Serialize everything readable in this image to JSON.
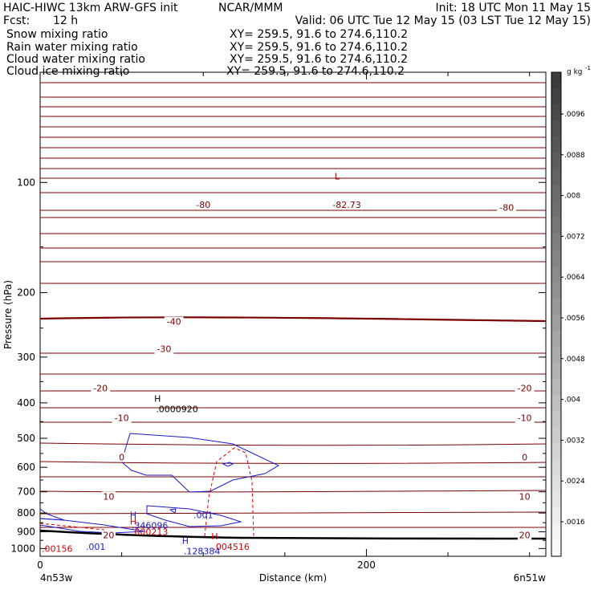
{
  "header": {
    "title": "HAIC-HIWC 13km ARW-GFS init",
    "org": "NCAR/MMM",
    "init": "Init: 18 UTC Mon 11 May 15",
    "fcst_label": "Fcst:",
    "fcst_value": "12 h",
    "valid": "Valid: 06 UTC Tue 12 May 15 (03 LST Tue 12 May 15)"
  },
  "fields": [
    {
      "name": "Snow mixing ratio",
      "xy": "XY= 259.5, 91.6 to 274.6,110.2",
      "color": "#000000"
    },
    {
      "name": "Rain water mixing ratio",
      "xy": "XY= 259.5, 91.6 to 274.6,110.2",
      "color": "#e00000"
    },
    {
      "name": "Cloud water mixing ratio",
      "xy": "XY= 259.5, 91.6 to 274.6,110.2",
      "color": "#1a1ad0"
    },
    {
      "name": "Cloud ice mixing ratio",
      "xy": "XY= 259.5, 91.6 to 274.6,110.2",
      "color": "#000000"
    }
  ],
  "chart_data": {
    "type": "contour-cross-section",
    "xlabel": "Distance (km)",
    "ylabel": "Pressure (hPa)",
    "x_ticks": [
      0,
      200
    ],
    "x_range": [
      0,
      310
    ],
    "y_ticks": [
      100,
      200,
      300,
      400,
      500,
      600,
      700,
      800,
      900,
      1000
    ],
    "y_range": [
      50,
      1050
    ],
    "y_scale": "log",
    "left_endpoint": "4n53w",
    "right_endpoint": "6n51w",
    "temperature_contour_labels": [
      {
        "text": "-80",
        "x": 100,
        "p": 115
      },
      {
        "text": "-82.73",
        "x": 188,
        "p": 115
      },
      {
        "text": "-80",
        "x": 286,
        "p": 117
      },
      {
        "text": "-40",
        "x": 82,
        "p": 240
      },
      {
        "text": "-30",
        "x": 76,
        "p": 285
      },
      {
        "text": "-20",
        "x": 37,
        "p": 365
      },
      {
        "text": "-20",
        "x": 297,
        "p": 365
      },
      {
        "text": "-10",
        "x": 50,
        "p": 440
      },
      {
        "text": "-10",
        "x": 297,
        "p": 440
      },
      {
        "text": "0",
        "x": 50,
        "p": 563
      },
      {
        "text": "0",
        "x": 297,
        "p": 563
      },
      {
        "text": "10",
        "x": 42,
        "p": 720
      },
      {
        "text": "10",
        "x": 297,
        "p": 720
      },
      {
        "text": "20",
        "x": 42,
        "p": 918
      },
      {
        "text": "20",
        "x": 297,
        "p": 918
      }
    ],
    "extrema": [
      {
        "marker": "L",
        "x": 182,
        "p": 98,
        "value": "",
        "color": "#aa0000"
      },
      {
        "marker": "H",
        "x": 72,
        "p": 397,
        "value": ".0000920",
        "color": "#000000"
      },
      {
        "marker": "H",
        "x": 57,
        "p": 826,
        "value": ".346096",
        "color": "#1a1ad0"
      },
      {
        "marker": "H",
        "x": 57,
        "p": 860,
        "value": ".000213",
        "color": "#e00000"
      },
      {
        "marker": "H",
        "x": 107,
        "p": 945,
        "value": ".004516",
        "color": "#e00000"
      },
      {
        "marker": "H",
        "x": 89,
        "p": 970,
        "value": ".128384",
        "color": "#1a1ad0"
      }
    ],
    "contour_value_labels": [
      {
        "text": ".001",
        "x": 93,
        "p": 810,
        "color": "#1a1ad0"
      },
      {
        "text": ".001",
        "x": 27,
        "p": 988,
        "color": "#1a1ad0"
      },
      {
        "text": ".00156",
        "x": 0,
        "p": 1000,
        "color": "#e00000"
      }
    ],
    "colorbar": {
      "units": "g kg",
      "units_sup": "-1",
      "labels": [
        ".0096",
        ".0088",
        ".008",
        ".0072",
        ".0064",
        ".0056",
        ".0048",
        ".004",
        ".0032",
        ".0024",
        ".0016"
      ]
    }
  }
}
